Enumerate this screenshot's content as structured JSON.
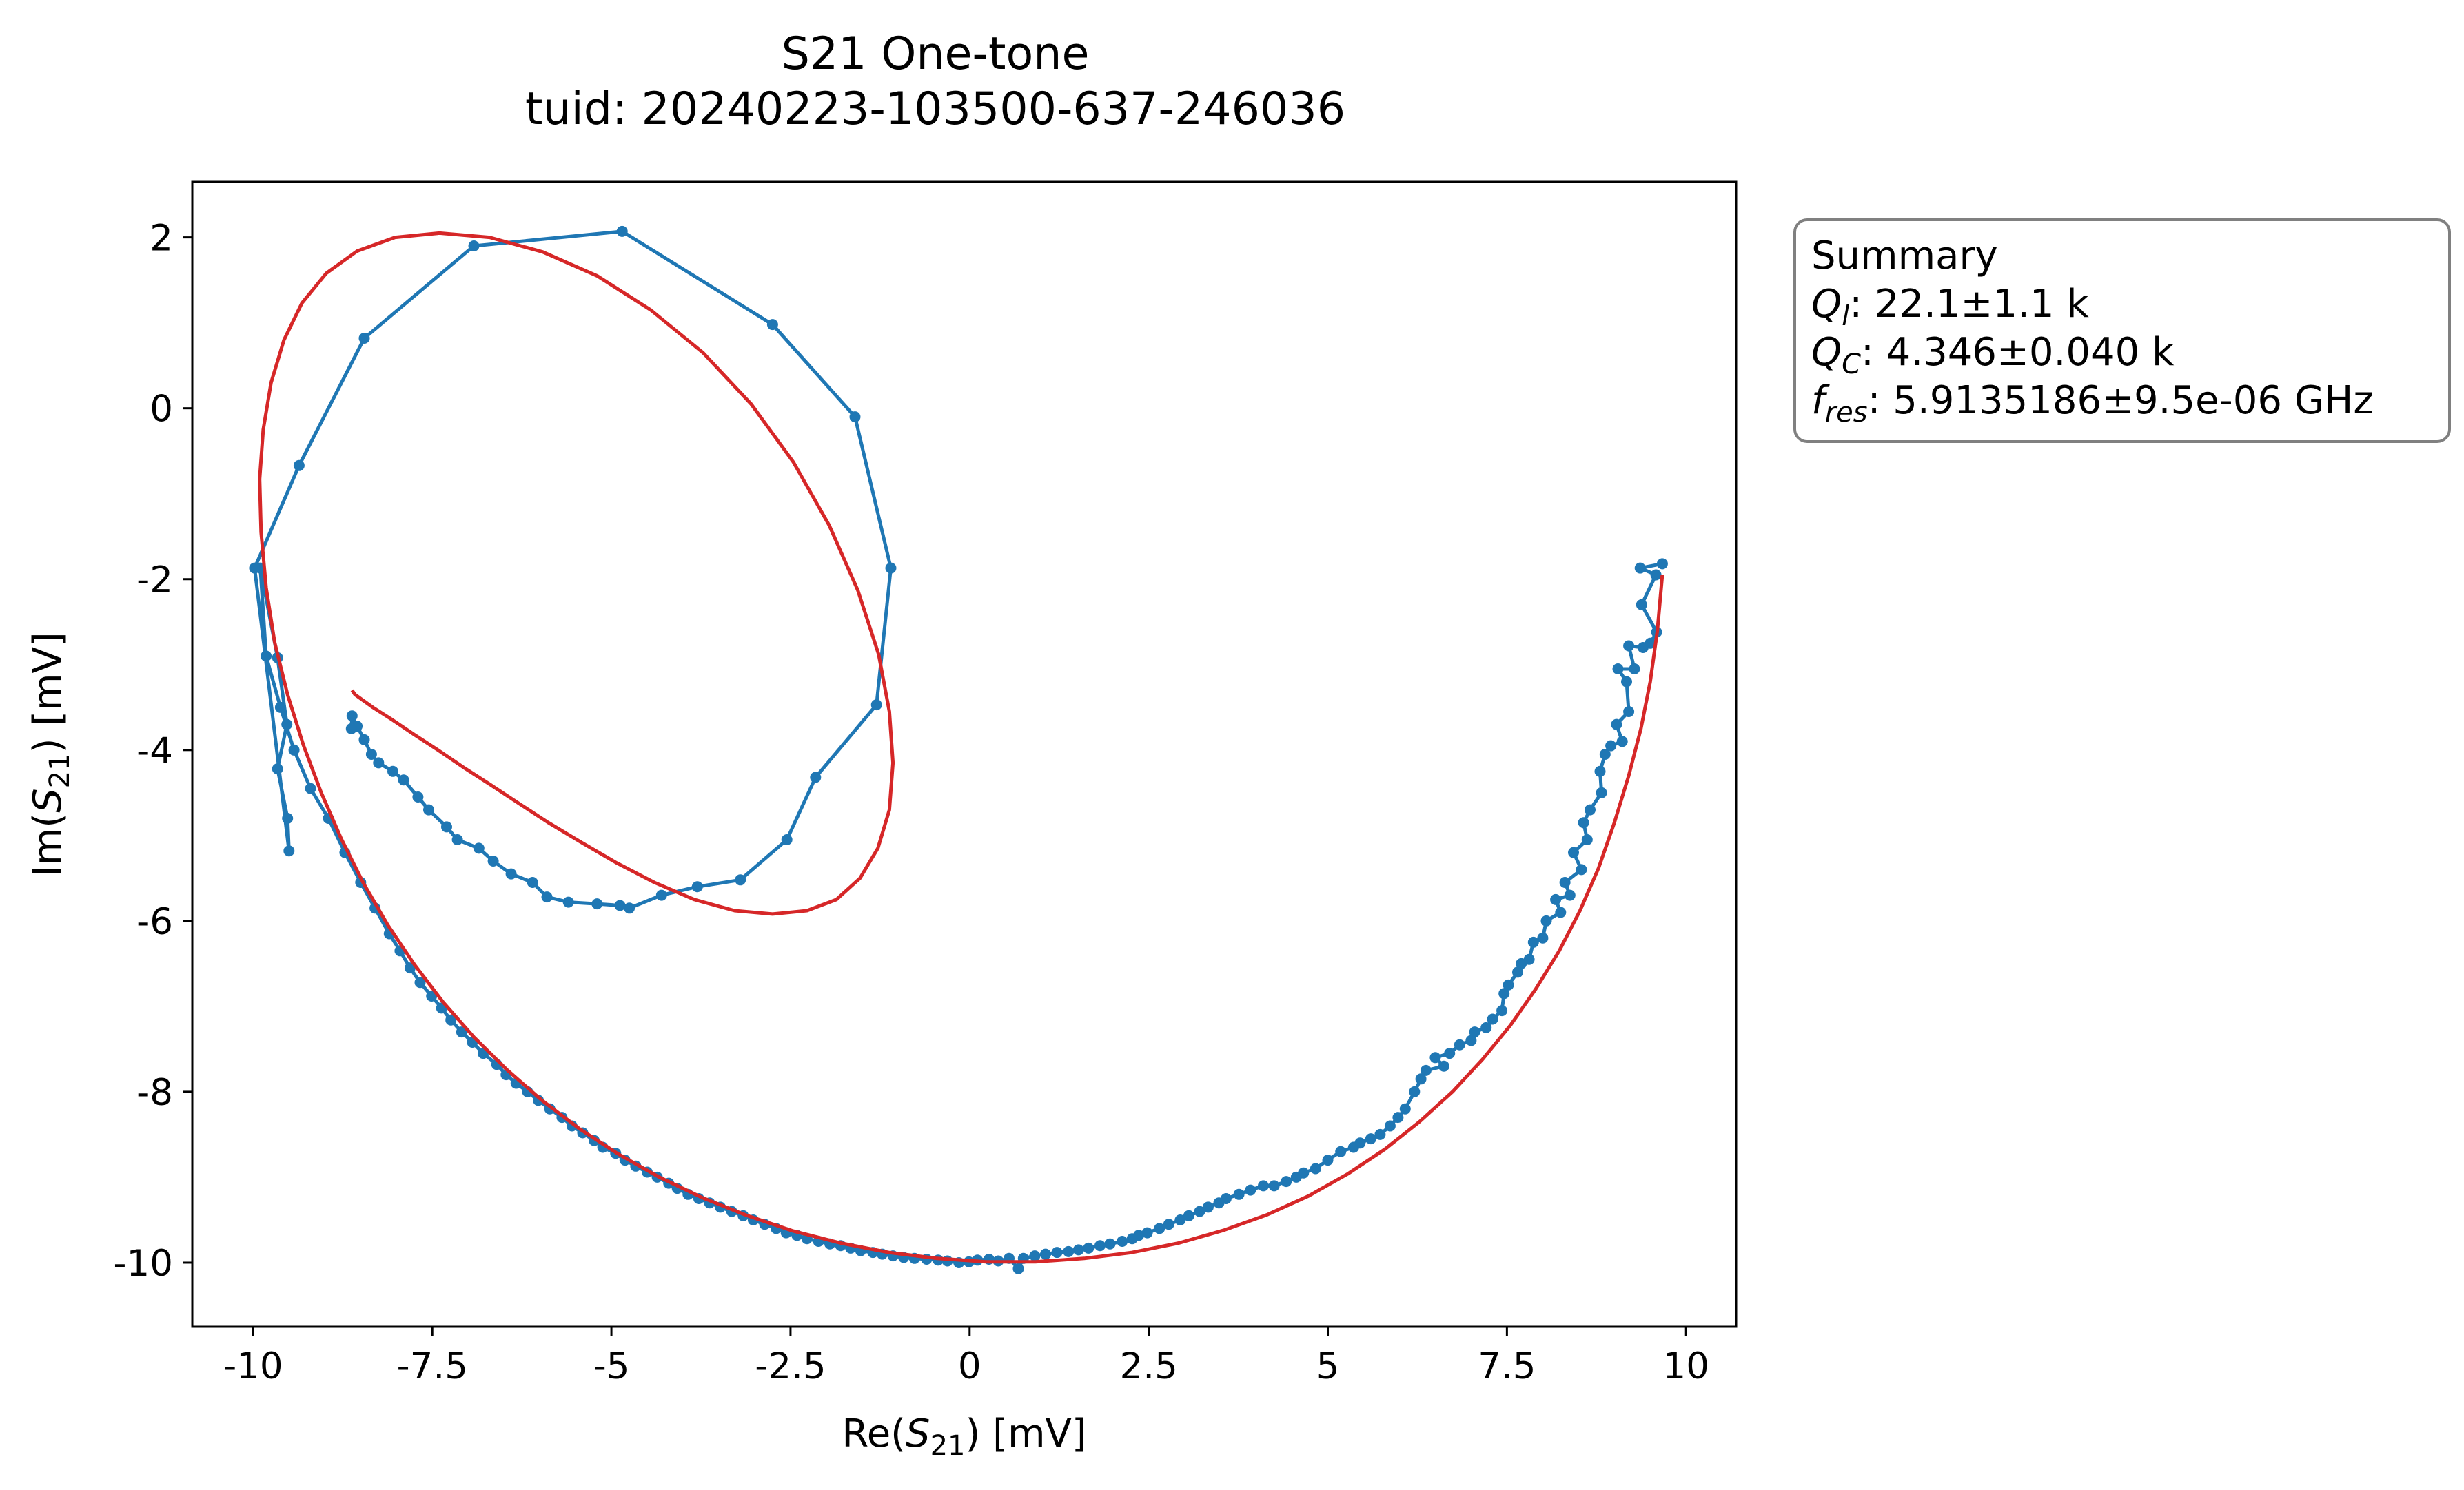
{
  "colors": {
    "data": "#1f77b4",
    "fit": "#d62728",
    "legend_border": "#808080",
    "frame": "#000000"
  },
  "chart_data": {
    "type": "line",
    "title": "S21 One-tone",
    "subtitle": "tuid: 20240223-103500-637-246036",
    "xlabel": {
      "prefix": "Re(",
      "sym": "S",
      "sub": "21",
      "suffix": ") [mV]"
    },
    "ylabel": {
      "prefix": "Im(",
      "sym": "S",
      "sub": "21",
      "suffix": ") [mV]"
    },
    "xlim": [
      -10.85,
      10.7
    ],
    "ylim": [
      -10.75,
      2.65
    ],
    "xticks": [
      -10,
      -7.5,
      -5,
      -2.5,
      0,
      2.5,
      5,
      7.5,
      10
    ],
    "xtick_labels": [
      "-10",
      "-7.5",
      "-5",
      "-2.5",
      "0",
      "2.5",
      "5",
      "7.5",
      "10"
    ],
    "yticks": [
      2,
      0,
      -2,
      -4,
      -6,
      -8,
      -10
    ],
    "ytick_labels": [
      "2",
      "0",
      "-2",
      "-4",
      "-6",
      "-8",
      "-10"
    ],
    "grid": false,
    "summary": {
      "heading": "Summary",
      "lines": [
        {
          "sym": "Q",
          "sub": "l",
          "value": ": 22.1±1.1 k"
        },
        {
          "sym": "Q",
          "sub": "C",
          "value": ": 4.346±0.040 k"
        },
        {
          "sym": "f",
          "sub": "res",
          "value": ": 5.9135186±9.5e-06 GHz"
        }
      ]
    },
    "series": [
      {
        "style": "line-markers",
        "x": [
          9.67,
          9.36,
          9.58,
          9.38,
          9.59,
          9.5,
          9.4,
          9.2,
          9.28,
          9.05,
          9.17,
          9.2,
          9.03,
          9.11,
          8.95,
          8.87,
          8.8,
          8.82,
          8.66,
          8.57,
          8.62,
          8.43,
          8.54,
          8.31,
          8.38,
          8.18,
          8.25,
          8.05,
          8.0,
          7.87,
          7.81,
          7.7,
          7.65,
          7.52,
          7.46,
          7.43,
          7.3,
          7.21,
          7.05,
          7.0,
          6.84,
          6.7,
          6.5,
          6.62,
          6.37,
          6.3,
          6.21,
          6.08,
          5.98,
          5.87,
          5.73,
          5.6,
          5.45,
          5.36,
          5.18,
          5.0,
          4.83,
          4.66,
          4.56,
          4.42,
          4.25,
          4.1,
          3.92,
          3.76,
          3.58,
          3.48,
          3.33,
          3.21,
          3.06,
          2.94,
          2.78,
          2.65,
          2.48,
          2.36,
          2.27,
          2.13,
          1.96,
          1.82,
          1.66,
          1.52,
          1.38,
          1.22,
          1.06,
          0.91,
          0.75,
          0.68,
          0.55,
          0.4,
          0.27,
          0.11,
          -0.01,
          -0.15,
          -0.31,
          -0.44,
          -0.6,
          -0.77,
          -0.92,
          -1.07,
          -1.22,
          -1.35,
          -1.52,
          -1.66,
          -1.8,
          -1.95,
          -2.11,
          -2.27,
          -2.41,
          -2.56,
          -2.7,
          -2.86,
          -3.02,
          -3.16,
          -3.32,
          -3.48,
          -3.63,
          -3.78,
          -3.93,
          -4.08,
          -4.2,
          -4.36,
          -4.5,
          -4.66,
          -4.81,
          -4.94,
          -5.12,
          -5.24,
          -5.4,
          -5.55,
          -5.69,
          -5.86,
          -6.02,
          -6.17,
          -6.33,
          -6.47,
          -6.6,
          -6.79,
          -6.94,
          -7.09,
          -7.24,
          -7.37,
          -7.51,
          -7.67,
          -7.81,
          -7.95,
          -8.1,
          -8.3,
          -8.5,
          -8.72,
          -8.95,
          -9.2,
          -9.43,
          -9.62,
          -9.82,
          -9.9,
          -9.66,
          -9.53,
          -9.66,
          -9.52,
          -9.5,
          -9.98,
          -9.36,
          -8.45,
          -6.92,
          -4.85,
          -2.75,
          -1.6,
          -1.1,
          -1.3,
          -2.15,
          -2.55,
          -3.2,
          -3.8,
          -4.3,
          -4.75,
          -4.88,
          -5.2,
          -5.6,
          -5.9,
          -6.1,
          -6.4,
          -6.65,
          -6.85,
          -7.15,
          -7.3,
          -7.55,
          -7.7,
          -7.9,
          -8.05,
          -8.25,
          -8.35,
          -8.45,
          -8.55,
          -8.62,
          -8.63
        ],
        "y": [
          -1.82,
          -1.87,
          -1.95,
          -2.3,
          -2.62,
          -2.75,
          -2.8,
          -2.78,
          -3.05,
          -3.05,
          -3.2,
          -3.55,
          -3.7,
          -3.9,
          -3.95,
          -4.05,
          -4.25,
          -4.5,
          -4.7,
          -4.85,
          -5.05,
          -5.2,
          -5.4,
          -5.55,
          -5.7,
          -5.75,
          -5.9,
          -6.0,
          -6.2,
          -6.25,
          -6.45,
          -6.5,
          -6.6,
          -6.75,
          -6.85,
          -7.05,
          -7.15,
          -7.25,
          -7.3,
          -7.4,
          -7.45,
          -7.55,
          -7.6,
          -7.7,
          -7.75,
          -7.85,
          -8.0,
          -8.2,
          -8.3,
          -8.4,
          -8.5,
          -8.55,
          -8.6,
          -8.65,
          -8.7,
          -8.8,
          -8.9,
          -8.95,
          -9.0,
          -9.05,
          -9.1,
          -9.1,
          -9.15,
          -9.2,
          -9.25,
          -9.3,
          -9.35,
          -9.4,
          -9.45,
          -9.5,
          -9.55,
          -9.6,
          -9.65,
          -9.68,
          -9.72,
          -9.75,
          -9.78,
          -9.8,
          -9.83,
          -9.85,
          -9.87,
          -9.88,
          -9.9,
          -9.92,
          -9.95,
          -10.07,
          -9.95,
          -9.98,
          -9.96,
          -9.97,
          -9.99,
          -10.0,
          -9.98,
          -9.97,
          -9.96,
          -9.95,
          -9.94,
          -9.92,
          -9.9,
          -9.88,
          -9.86,
          -9.83,
          -9.8,
          -9.78,
          -9.75,
          -9.72,
          -9.68,
          -9.65,
          -9.6,
          -9.55,
          -9.5,
          -9.45,
          -9.4,
          -9.35,
          -9.3,
          -9.25,
          -9.2,
          -9.13,
          -9.07,
          -9.0,
          -8.94,
          -8.87,
          -8.8,
          -8.72,
          -8.65,
          -8.57,
          -8.48,
          -8.4,
          -8.3,
          -8.2,
          -8.1,
          -8.0,
          -7.9,
          -7.8,
          -7.68,
          -7.55,
          -7.42,
          -7.3,
          -7.16,
          -7.02,
          -6.88,
          -6.72,
          -6.55,
          -6.35,
          -6.15,
          -5.85,
          -5.55,
          -5.2,
          -4.8,
          -4.45,
          -4.0,
          -3.5,
          -2.9,
          -1.87,
          -2.92,
          -3.7,
          -4.22,
          -4.8,
          -5.18,
          -1.87,
          -0.67,
          0.82,
          1.9,
          2.07,
          0.98,
          -0.1,
          -1.87,
          -3.47,
          -4.32,
          -5.05,
          -5.52,
          -5.6,
          -5.7,
          -5.85,
          -5.82,
          -5.8,
          -5.78,
          -5.72,
          -5.55,
          -5.45,
          -5.3,
          -5.15,
          -5.05,
          -4.9,
          -4.7,
          -4.55,
          -4.35,
          -4.25,
          -4.15,
          -4.05,
          -3.88,
          -3.72,
          -3.6,
          -3.75
        ]
      },
      {
        "style": "line",
        "x": [
          9.67,
          9.6,
          9.5,
          9.37,
          9.2,
          9.0,
          8.78,
          8.52,
          8.23,
          7.9,
          7.55,
          7.16,
          6.74,
          6.28,
          5.8,
          5.28,
          4.73,
          4.15,
          3.55,
          2.92,
          2.27,
          1.6,
          0.92,
          0.23,
          -0.45,
          -1.13,
          -1.8,
          -2.46,
          -3.1,
          -3.73,
          -4.33,
          -4.9,
          -5.45,
          -5.97,
          -6.46,
          -6.92,
          -7.35,
          -7.75,
          -8.12,
          -8.46,
          -8.77,
          -9.05,
          -9.3,
          -9.52,
          -9.7,
          -9.82,
          -9.89,
          -9.91,
          -9.86,
          -9.75,
          -9.57,
          -9.32,
          -8.98,
          -8.55,
          -8.02,
          -7.4,
          -6.7,
          -5.96,
          -5.2,
          -4.45,
          -3.72,
          -3.05,
          -2.46,
          -1.96,
          -1.56,
          -1.27,
          -1.12,
          -1.07,
          -1.12,
          -1.28,
          -1.53,
          -1.86,
          -2.27,
          -2.75,
          -3.28,
          -3.84,
          -4.4,
          -4.93,
          -5.42,
          -5.88,
          -6.3,
          -6.7,
          -7.07,
          -7.42,
          -7.75,
          -8.05,
          -8.33,
          -8.58,
          -8.62
        ],
        "y": [
          -1.95,
          -2.6,
          -3.2,
          -3.75,
          -4.3,
          -4.85,
          -5.38,
          -5.88,
          -6.35,
          -6.8,
          -7.22,
          -7.62,
          -8.0,
          -8.35,
          -8.67,
          -8.96,
          -9.22,
          -9.44,
          -9.62,
          -9.77,
          -9.88,
          -9.95,
          -9.99,
          -9.99,
          -9.95,
          -9.88,
          -9.77,
          -9.63,
          -9.45,
          -9.24,
          -9.0,
          -8.73,
          -8.43,
          -8.1,
          -7.74,
          -7.36,
          -6.95,
          -6.51,
          -6.05,
          -5.56,
          -5.04,
          -4.5,
          -3.94,
          -3.35,
          -2.74,
          -2.1,
          -1.45,
          -0.83,
          -0.25,
          0.3,
          0.8,
          1.23,
          1.58,
          1.84,
          2.0,
          2.05,
          2.0,
          1.83,
          1.55,
          1.15,
          0.65,
          0.05,
          -0.63,
          -1.37,
          -2.13,
          -2.88,
          -3.55,
          -4.15,
          -4.7,
          -5.15,
          -5.5,
          -5.75,
          -5.88,
          -5.92,
          -5.88,
          -5.75,
          -5.55,
          -5.32,
          -5.08,
          -4.85,
          -4.62,
          -4.4,
          -4.2,
          -4.0,
          -3.82,
          -3.65,
          -3.5,
          -3.35,
          -3.3
        ]
      }
    ]
  }
}
